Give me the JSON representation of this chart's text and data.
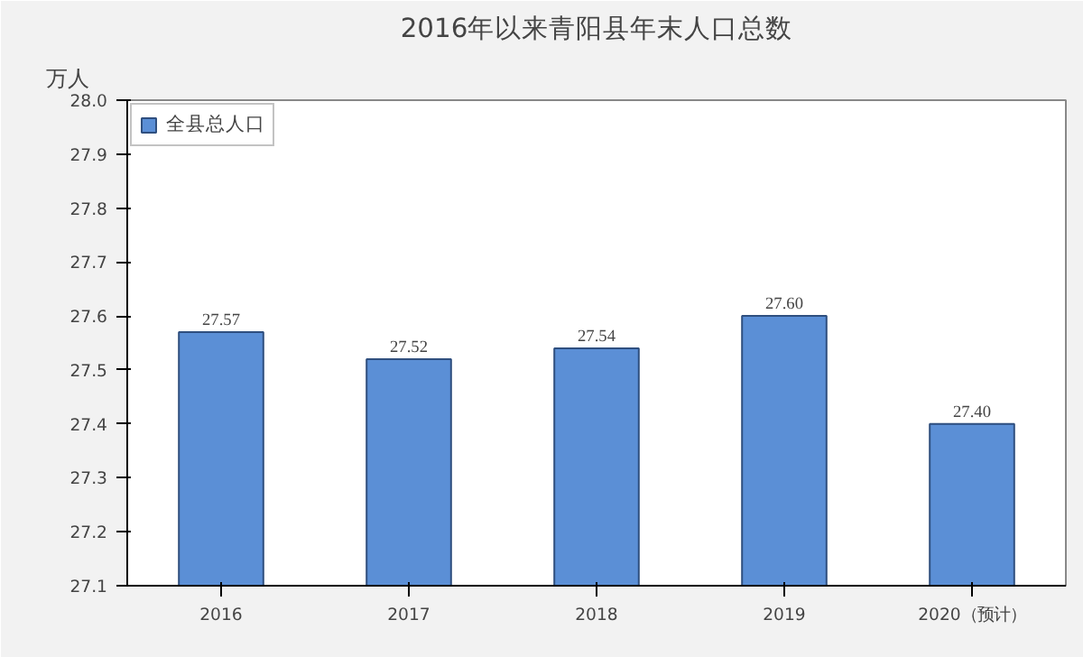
{
  "chart_data": {
    "type": "bar",
    "title": "2016年以来青阳县年末人口总数",
    "ylabel": "万人",
    "categories": [
      "2016",
      "2017",
      "2018",
      "2019",
      "2020（预计）"
    ],
    "series": [
      {
        "name": "全县总人口",
        "color": "#5b8fd6",
        "values": [
          27.57,
          27.52,
          27.54,
          27.6,
          27.4
        ]
      }
    ],
    "value_labels": [
      "27.57",
      "27.52",
      "27.54",
      "27.60",
      "27.40"
    ],
    "ylim": [
      27.1,
      28.0
    ],
    "yticks": [
      {
        "value": 27.1,
        "label": "27.1"
      },
      {
        "value": 27.2,
        "label": "27.2"
      },
      {
        "value": 27.3,
        "label": "27.3"
      },
      {
        "value": 27.4,
        "label": "27.4"
      },
      {
        "value": 27.5,
        "label": "27.5"
      },
      {
        "value": 27.6,
        "label": "27.6"
      },
      {
        "value": 27.7,
        "label": "27.7"
      },
      {
        "value": 27.8,
        "label": "27.8"
      },
      {
        "value": 27.9,
        "label": "27.9"
      },
      {
        "value": 28.0,
        "label": "28.0"
      }
    ],
    "grid": false,
    "legend": "top left"
  }
}
